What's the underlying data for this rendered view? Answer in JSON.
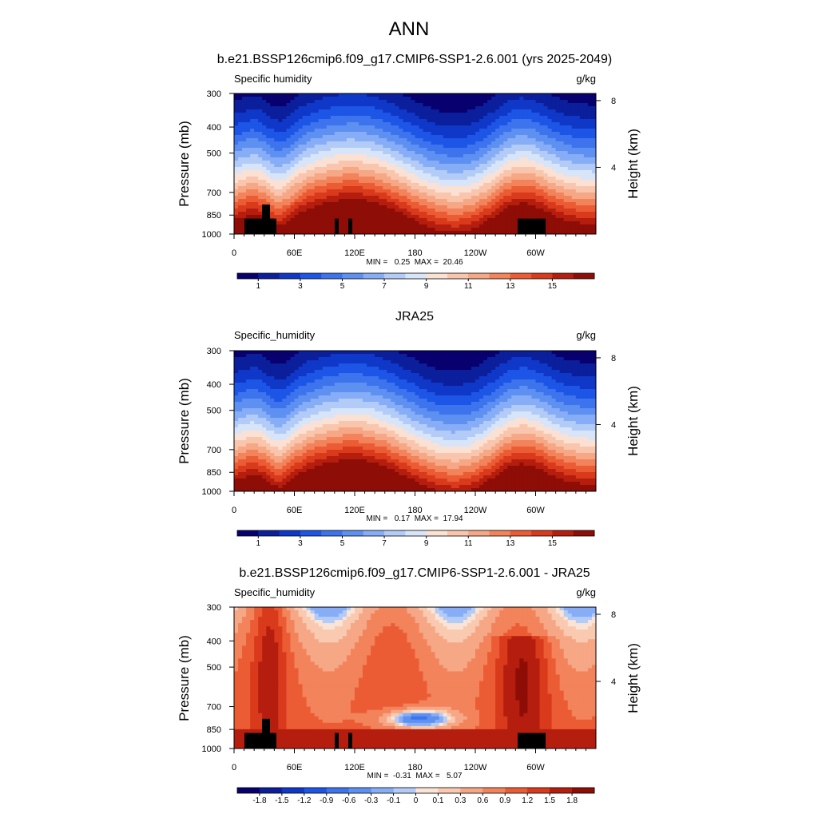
{
  "figure_title": "ANN",
  "chart_data": [
    {
      "type": "heatmap",
      "title": "b.e21.BSSP126cmip6.f09_g17.CMIP6-SSP1-2.6.001 (yrs 2025-2049)",
      "left_label": "Specific humidity",
      "units": "g/kg",
      "ylabel": "Pressure (mb)",
      "ylabel_right": "Height (km)",
      "xlabel": "",
      "x_ticks": [
        "0",
        "60E",
        "120E",
        "180",
        "120W",
        "60W"
      ],
      "y_ticks": [
        "300",
        "400",
        "500",
        "700",
        "850",
        "1000"
      ],
      "y_ticks_right": [
        "8",
        "4"
      ],
      "min_max_text": "MIN =   0.25  MAX =  20.46",
      "min": 0.25,
      "max": 20.46,
      "colorbar_labels": [
        "1",
        "3",
        "5",
        "7",
        "9",
        "11",
        "13",
        "15"
      ],
      "colorbar_kind": "humidity",
      "field": "model"
    },
    {
      "type": "heatmap",
      "title": "JRA25",
      "left_label": "Specific_humidity",
      "units": "g/kg",
      "ylabel": "Pressure (mb)",
      "ylabel_right": "Height (km)",
      "xlabel": "",
      "x_ticks": [
        "0",
        "60E",
        "120E",
        "180",
        "120W",
        "60W"
      ],
      "y_ticks": [
        "300",
        "400",
        "500",
        "700",
        "850",
        "1000"
      ],
      "y_ticks_right": [
        "8",
        "4"
      ],
      "min_max_text": "MIN =   0.17  MAX =  17.94",
      "min": 0.17,
      "max": 17.94,
      "colorbar_labels": [
        "1",
        "3",
        "5",
        "7",
        "9",
        "11",
        "13",
        "15"
      ],
      "colorbar_kind": "humidity",
      "field": "obs"
    },
    {
      "type": "heatmap",
      "title": "b.e21.BSSP126cmip6.f09_g17.CMIP6-SSP1-2.6.001 - JRA25",
      "left_label": "Specific_humidity",
      "units": "g/kg",
      "ylabel": "Pressure (mb)",
      "ylabel_right": "Height (km)",
      "xlabel": "",
      "x_ticks": [
        "0",
        "60E",
        "120E",
        "180",
        "120W",
        "60W"
      ],
      "y_ticks": [
        "300",
        "400",
        "500",
        "700",
        "850",
        "1000"
      ],
      "y_ticks_right": [
        "8",
        "4"
      ],
      "min_max_text": "MIN =  -0.31  MAX =   5.07",
      "min": -0.31,
      "max": 5.07,
      "colorbar_labels": [
        "-1.8",
        "-1.5",
        "-1.2",
        "-0.9",
        "-0.6",
        "-0.3",
        "-0.1",
        "0",
        "0.1",
        "0.3",
        "0.6",
        "0.9",
        "1.2",
        "1.5",
        "1.8"
      ],
      "colorbar_kind": "difference",
      "field": "diff"
    }
  ],
  "colors": {
    "humidity_levels": [
      "#08006e",
      "#0b1f9c",
      "#0f38c8",
      "#1d55e6",
      "#3d74ee",
      "#5e90f2",
      "#86adf5",
      "#b2cbf7",
      "#d8e5f8",
      "#fbe1d3",
      "#f9c6ad",
      "#f6a785",
      "#f2835b",
      "#ec5c34",
      "#d93a1c",
      "#b51e0e",
      "#8e0d06"
    ],
    "difference_levels": [
      "#08006e",
      "#0b1f9c",
      "#0f38c8",
      "#1d55e6",
      "#3d74ee",
      "#5e90f2",
      "#86adf5",
      "#b2cbf7",
      "#fbe4d6",
      "#f9c9b0",
      "#f6a785",
      "#f2835b",
      "#ec5c34",
      "#d93a1c",
      "#b51e0e",
      "#8e0d06"
    ],
    "topography": "#000000"
  }
}
